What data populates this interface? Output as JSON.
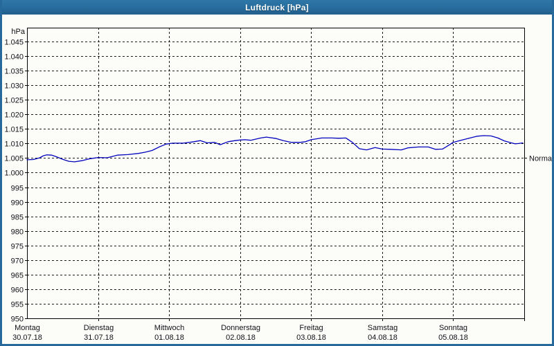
{
  "window": {
    "title": "Luftdruck [hPa]"
  },
  "colors": {
    "titlebar": "#276c9c",
    "window_border": "#26699a",
    "background": "#fcfdf8",
    "grid": "#1a1a1a",
    "axis": "#000000",
    "line": "#0000bd",
    "text": "#101018",
    "title_text": "#ffffff"
  },
  "chart_data": {
    "type": "line",
    "title": "Luftdruck [hPa]",
    "y_unit_label": "hPa",
    "grid": true,
    "legend": "none",
    "y_axis": {
      "min": 950,
      "max": 1045,
      "tick_step": 5,
      "top_padding_hpa": 5
    },
    "y_ticks": [
      {
        "v": 1045,
        "label": "1.045"
      },
      {
        "v": 1040,
        "label": "1.040"
      },
      {
        "v": 1035,
        "label": "1.035"
      },
      {
        "v": 1030,
        "label": "1.030"
      },
      {
        "v": 1025,
        "label": "1.025"
      },
      {
        "v": 1020,
        "label": "1.020"
      },
      {
        "v": 1015,
        "label": "1.015"
      },
      {
        "v": 1010,
        "label": "1.010"
      },
      {
        "v": 1005,
        "label": "1.005"
      },
      {
        "v": 1000,
        "label": "1.000"
      },
      {
        "v": 995,
        "label": "995"
      },
      {
        "v": 990,
        "label": "990"
      },
      {
        "v": 985,
        "label": "985"
      },
      {
        "v": 980,
        "label": "980"
      },
      {
        "v": 975,
        "label": "975"
      },
      {
        "v": 970,
        "label": "970"
      },
      {
        "v": 965,
        "label": "965"
      },
      {
        "v": 960,
        "label": "960"
      },
      {
        "v": 955,
        "label": "955"
      },
      {
        "v": 950,
        "label": "950"
      }
    ],
    "x_days": [
      {
        "weekday": "Montag",
        "date": "30.07.18"
      },
      {
        "weekday": "Dienstag",
        "date": "31.07.18"
      },
      {
        "weekday": "Mittwoch",
        "date": "01.08.18"
      },
      {
        "weekday": "Donnerstag",
        "date": "02.08.18"
      },
      {
        "weekday": "Freitag",
        "date": "03.08.18"
      },
      {
        "weekday": "Samstag",
        "date": "04.08.18"
      },
      {
        "weekday": "Sonntag",
        "date": "05.08.18"
      }
    ],
    "x_span_days": 7,
    "annotation": {
      "label": "Normal",
      "value": 1005
    },
    "series": [
      {
        "name": "Luftdruck",
        "color": "#0000bd",
        "x_unit": "days_from_start",
        "points": [
          [
            0.0,
            1004.4
          ],
          [
            0.09,
            1004.5
          ],
          [
            0.18,
            1005.1
          ],
          [
            0.23,
            1005.8
          ],
          [
            0.28,
            1006.1
          ],
          [
            0.35,
            1006.0
          ],
          [
            0.42,
            1005.4
          ],
          [
            0.5,
            1004.6
          ],
          [
            0.59,
            1003.9
          ],
          [
            0.67,
            1003.7
          ],
          [
            0.77,
            1004.1
          ],
          [
            0.89,
            1004.8
          ],
          [
            1.0,
            1005.2
          ],
          [
            1.13,
            1005.1
          ],
          [
            1.27,
            1006.0
          ],
          [
            1.42,
            1006.2
          ],
          [
            1.57,
            1006.6
          ],
          [
            1.66,
            1007.0
          ],
          [
            1.76,
            1007.6
          ],
          [
            1.86,
            1008.8
          ],
          [
            1.96,
            1009.8
          ],
          [
            2.05,
            1010.1
          ],
          [
            2.2,
            1010.1
          ],
          [
            2.35,
            1010.6
          ],
          [
            2.44,
            1011.0
          ],
          [
            2.54,
            1010.2
          ],
          [
            2.64,
            1010.4
          ],
          [
            2.72,
            1009.6
          ],
          [
            2.83,
            1010.6
          ],
          [
            2.93,
            1011.0
          ],
          [
            3.0,
            1011.2
          ],
          [
            3.07,
            1011.3
          ],
          [
            3.15,
            1011.1
          ],
          [
            3.29,
            1011.9
          ],
          [
            3.37,
            1012.2
          ],
          [
            3.51,
            1011.7
          ],
          [
            3.61,
            1011.0
          ],
          [
            3.72,
            1010.4
          ],
          [
            3.85,
            1010.4
          ],
          [
            3.92,
            1010.6
          ],
          [
            4.0,
            1011.3
          ],
          [
            4.15,
            1011.9
          ],
          [
            4.29,
            1011.9
          ],
          [
            4.39,
            1011.8
          ],
          [
            4.49,
            1011.9
          ],
          [
            4.58,
            1010.4
          ],
          [
            4.68,
            1008.2
          ],
          [
            4.78,
            1007.8
          ],
          [
            4.9,
            1008.6
          ],
          [
            5.0,
            1008.1
          ],
          [
            5.12,
            1008.0
          ],
          [
            5.27,
            1007.8
          ],
          [
            5.36,
            1008.5
          ],
          [
            5.51,
            1008.8
          ],
          [
            5.65,
            1008.8
          ],
          [
            5.75,
            1008.0
          ],
          [
            5.85,
            1008.1
          ],
          [
            5.95,
            1009.6
          ],
          [
            6.0,
            1010.4
          ],
          [
            6.09,
            1011.0
          ],
          [
            6.19,
            1011.6
          ],
          [
            6.34,
            1012.5
          ],
          [
            6.43,
            1012.7
          ],
          [
            6.53,
            1012.6
          ],
          [
            6.63,
            1011.9
          ],
          [
            6.72,
            1010.9
          ],
          [
            6.82,
            1010.2
          ],
          [
            6.87,
            1009.9
          ],
          [
            6.92,
            1010.0
          ],
          [
            6.98,
            1010.2
          ]
        ]
      }
    ]
  }
}
